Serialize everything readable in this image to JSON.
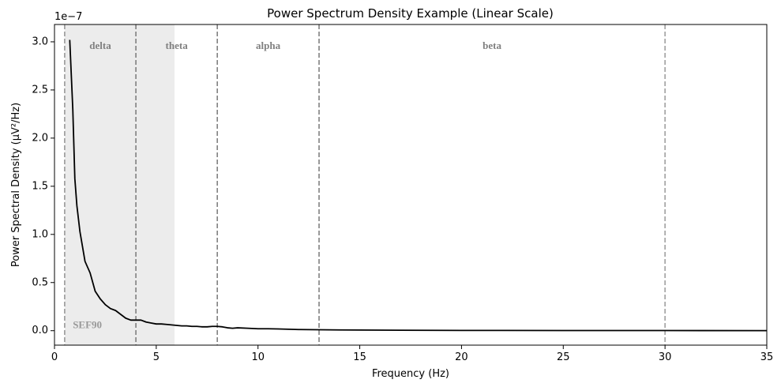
{
  "chart_data": {
    "type": "line",
    "title": "Power Spectrum Density Example (Linear Scale)",
    "xlabel": "Frequency (Hz)",
    "ylabel": "Power Spectral Density (μV²/Hz)",
    "y_offset_label": "1e−7",
    "xlim": [
      0,
      35
    ],
    "ylim": [
      -0.15,
      3.18
    ],
    "y_scale_multiplier": 1e-07,
    "x_ticks": [
      0,
      5,
      10,
      15,
      20,
      25,
      30,
      35
    ],
    "x_tick_labels": [
      "0",
      "5",
      "10",
      "15",
      "20",
      "25",
      "30",
      "35"
    ],
    "y_ticks": [
      0.0,
      0.5,
      1.0,
      1.5,
      2.0,
      2.5,
      3.0
    ],
    "y_tick_labels": [
      "0.0",
      "0.5",
      "1.0",
      "1.5",
      "2.0",
      "2.5",
      "3.0"
    ],
    "grid": false,
    "series": [
      {
        "color": "#000000",
        "x": [
          0.75,
          0.9,
          1.0,
          1.1,
          1.25,
          1.5,
          1.75,
          2.0,
          2.25,
          2.5,
          2.75,
          3.0,
          3.25,
          3.5,
          3.75,
          4.0,
          4.25,
          4.5,
          4.75,
          5.0,
          5.25,
          5.5,
          5.75,
          6.0,
          6.25,
          6.5,
          6.75,
          7.0,
          7.25,
          7.5,
          7.75,
          8.0,
          8.25,
          8.5,
          8.75,
          9.0,
          9.5,
          10.0,
          10.5,
          11.0,
          12.0,
          13.0,
          14.0,
          15.0,
          17.0,
          20.0,
          25.0,
          30.0,
          35.0
        ],
        "values": [
          3.02,
          2.3,
          1.58,
          1.3,
          1.03,
          0.72,
          0.6,
          0.41,
          0.33,
          0.27,
          0.23,
          0.21,
          0.17,
          0.13,
          0.11,
          0.11,
          0.11,
          0.09,
          0.08,
          0.07,
          0.07,
          0.065,
          0.06,
          0.055,
          0.05,
          0.05,
          0.045,
          0.045,
          0.04,
          0.04,
          0.045,
          0.045,
          0.04,
          0.03,
          0.025,
          0.03,
          0.025,
          0.02,
          0.02,
          0.018,
          0.012,
          0.01,
          0.008,
          0.007,
          0.005,
          0.003,
          0.002,
          0.0015,
          0.001
        ]
      }
    ],
    "vlines": [
      {
        "x": 0.5,
        "style": "dashed",
        "color": "#999999"
      },
      {
        "x": 4,
        "style": "dashed",
        "color": "#808080"
      },
      {
        "x": 8,
        "style": "dashed",
        "color": "#808080"
      },
      {
        "x": 13,
        "style": "dashed",
        "color": "#808080"
      },
      {
        "x": 30,
        "style": "dashed",
        "color": "#a0a0a0"
      }
    ],
    "shaded_region": {
      "x_start": 0.5,
      "x_end": 5.9,
      "color": "#ececec",
      "label": "SEF90"
    },
    "band_labels": [
      {
        "text": "delta",
        "x": 2.25
      },
      {
        "text": "theta",
        "x": 6.0
      },
      {
        "text": "alpha",
        "x": 10.5
      },
      {
        "text": "beta",
        "x": 21.5
      }
    ],
    "band_label_y": 2.95,
    "sef_label_x": 0.9,
    "sef_label_y": 0.05
  }
}
